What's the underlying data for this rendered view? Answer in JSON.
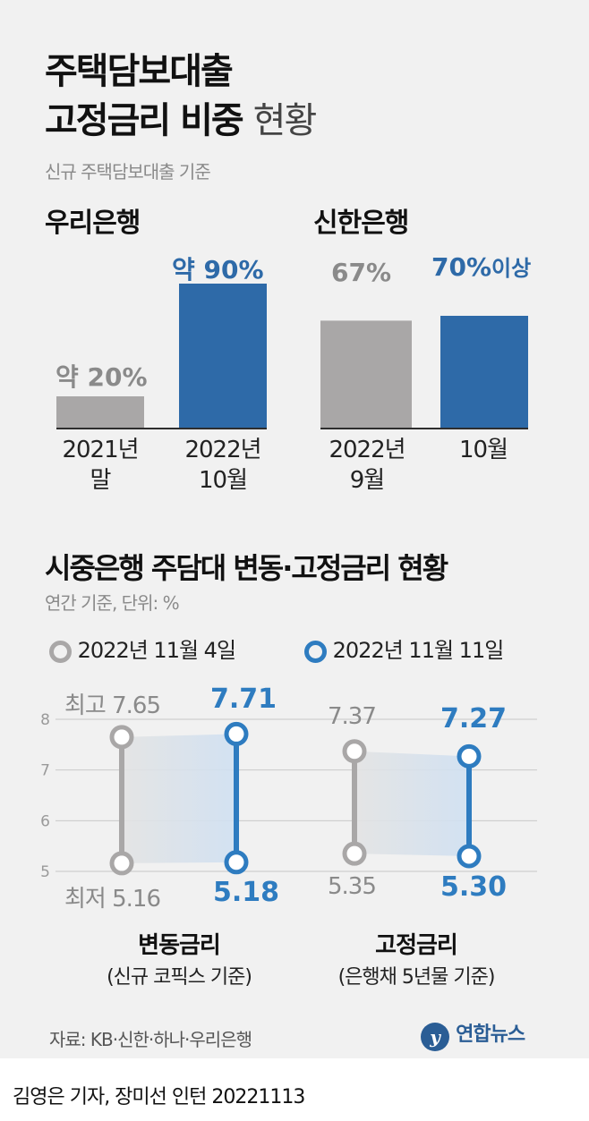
{
  "header": {
    "title_line1": "주택담보대출",
    "title_line2_bold": "고정금리 비중",
    "title_line2_light": "현황",
    "subtitle": "신규 주택담보대출 기준"
  },
  "colors": {
    "gray": "#a9a7a7",
    "blue": "#2e6aa8",
    "blue_light": "#2e7cc0",
    "dark": "#2e2e2e"
  },
  "chart_data": [
    {
      "type": "bar",
      "title": "우리은행",
      "categories": [
        "2021년 말",
        "2022년 10월"
      ],
      "values": [
        20,
        90
      ],
      "labels": [
        {
          "prefix": "약 ",
          "value": "20%",
          "suffix": ""
        },
        {
          "prefix": "약 ",
          "value": "90%",
          "suffix": ""
        }
      ],
      "cat_lines": [
        [
          "2021년",
          "말"
        ],
        [
          "2022년",
          "10월"
        ]
      ],
      "ylim": [
        0,
        100
      ]
    },
    {
      "type": "bar",
      "title": "신한은행",
      "categories": [
        "2022년 9월",
        "10월"
      ],
      "values": [
        67,
        70
      ],
      "labels": [
        {
          "prefix": "",
          "value": "67%",
          "suffix": ""
        },
        {
          "prefix": "",
          "value": "70%",
          "suffix": "이상"
        }
      ],
      "cat_lines": [
        [
          "2022년",
          "9월"
        ],
        [
          "10월"
        ]
      ],
      "ylim": [
        0,
        100
      ]
    },
    {
      "type": "range",
      "title": "시중은행 주담대 변동·고정금리 현황",
      "subtitle": "연간 기준, 단위: %",
      "legend": [
        "2022년 11월 4일",
        "2022년 11월 11일"
      ],
      "yticks": [
        8,
        7,
        6,
        5
      ],
      "ylim": [
        5,
        8
      ],
      "groups": [
        {
          "name": "변동금리",
          "sub": "(신규 코픽스 기준)",
          "series": [
            {
              "date": "2022년 11월 4일",
              "high": 7.65,
              "low": 5.16,
              "high_label": "최고 7.65",
              "low_label": "최저 5.16"
            },
            {
              "date": "2022년 11월 11일",
              "high": 7.71,
              "low": 5.18,
              "high_label": "7.71",
              "low_label": "5.18"
            }
          ]
        },
        {
          "name": "고정금리",
          "sub": "(은행채 5년물 기준)",
          "series": [
            {
              "date": "2022년 11월 4일",
              "high": 7.37,
              "low": 5.35,
              "high_label": "7.37",
              "low_label": "5.35"
            },
            {
              "date": "2022년 11월 11일",
              "high": 7.27,
              "low": 5.3,
              "high_label": "7.27",
              "low_label": "5.30"
            }
          ]
        }
      ]
    }
  ],
  "footer": {
    "source": "자료: KB·신한·하나·우리은행",
    "logo_text": "연합뉴스",
    "credit": "김영은 기자, 장미선 인턴  20221113"
  }
}
